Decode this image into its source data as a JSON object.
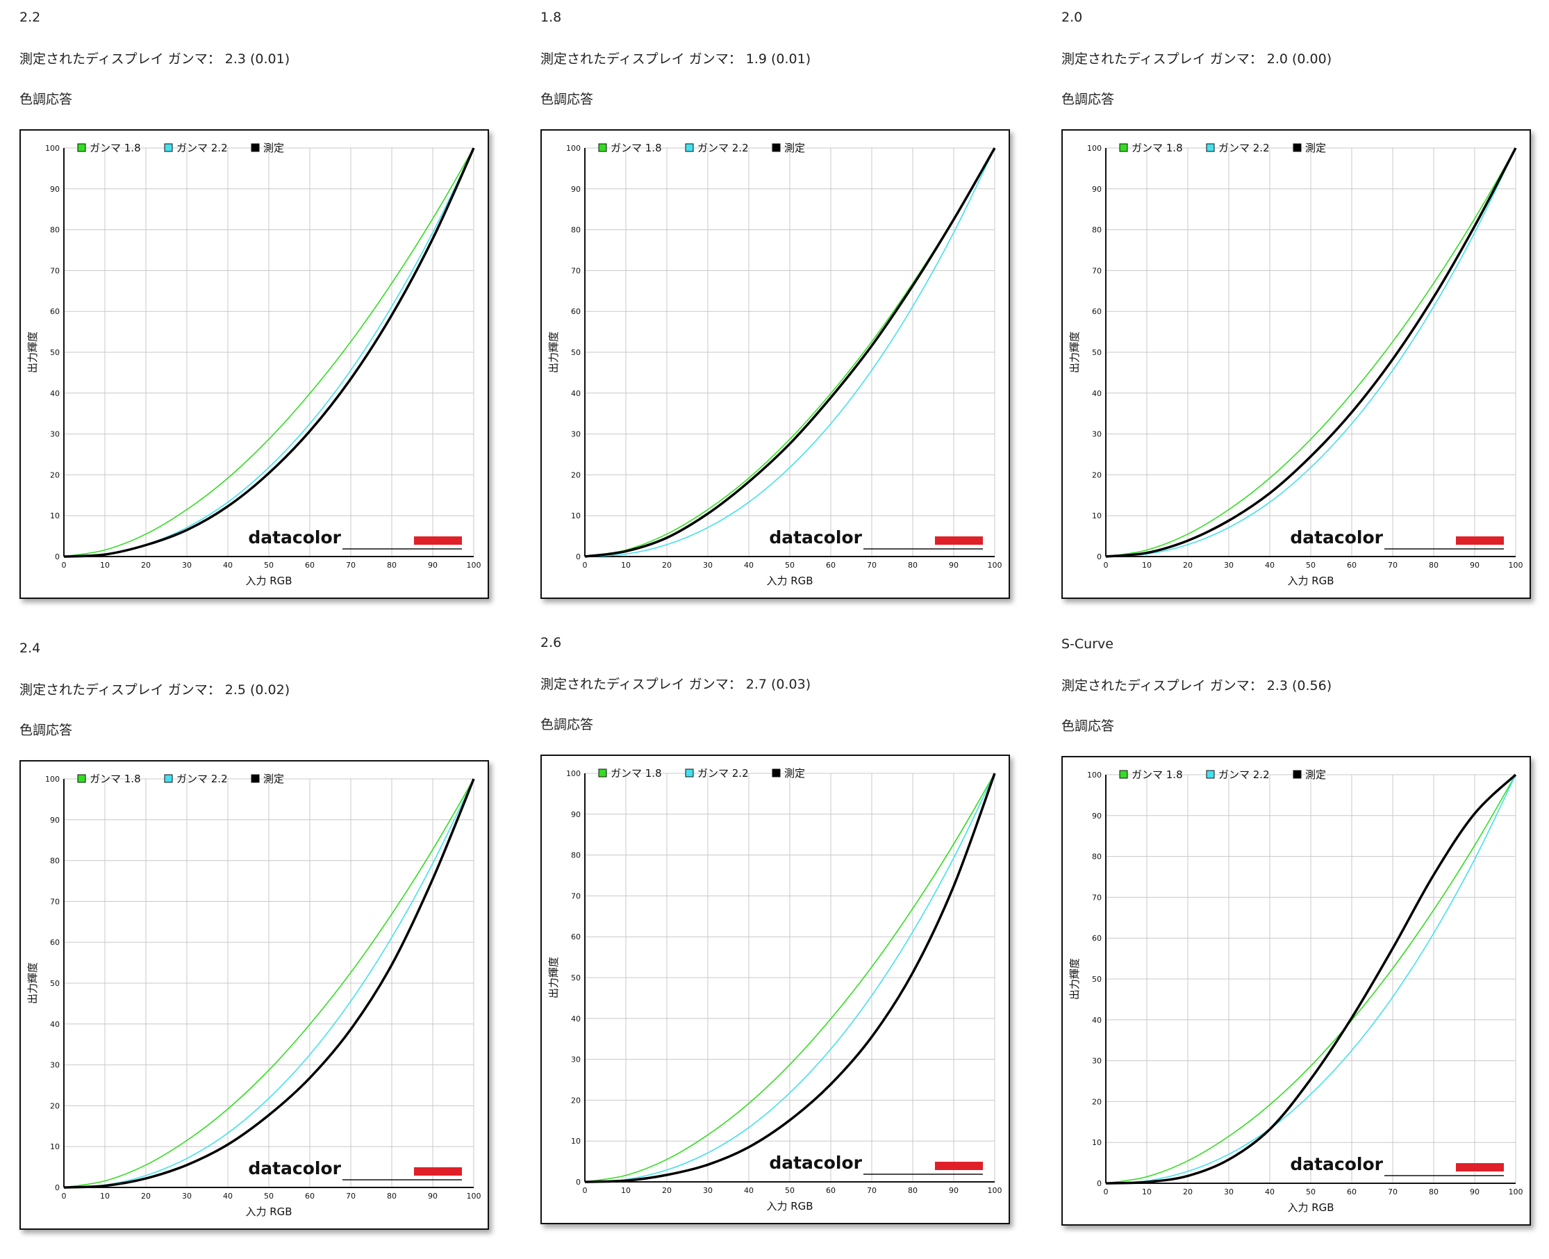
{
  "colors": {
    "green": "#33dd22",
    "cyan": "#44e0ee",
    "black": "#000000",
    "grid": "#c8c8c8",
    "brand_red": "#e02028"
  },
  "chart_data": [
    {
      "type": "line",
      "title": "2.2",
      "gamma_text": "測定されたディスプレイ ガンマ：  2.3 (0.01)",
      "section": "色調応答",
      "xlabel": "入力 RGB",
      "ylabel": "出力輝度",
      "xlim": [
        0,
        100
      ],
      "ylim": [
        0,
        100
      ],
      "grid": true,
      "legend": "top-left",
      "logo": "datacolor",
      "ticks": [
        "0",
        "10",
        "20",
        "30",
        "40",
        "50",
        "60",
        "70",
        "80",
        "90",
        "100"
      ],
      "series": [
        {
          "name": "ガンマ 1.8",
          "color": "green",
          "x": [
            0,
            10,
            20,
            30,
            40,
            50,
            60,
            70,
            80,
            90,
            100
          ],
          "y": [
            0,
            1.6,
            5.5,
            11.5,
            19.2,
            28.7,
            39.9,
            52.6,
            66.9,
            82.7,
            100
          ]
        },
        {
          "name": "ガンマ 2.2",
          "color": "cyan",
          "x": [
            0,
            10,
            20,
            30,
            40,
            50,
            60,
            70,
            80,
            90,
            100
          ],
          "y": [
            0,
            0.6,
            2.9,
            7.1,
            13.3,
            21.8,
            32.5,
            45.6,
            61.2,
            79.3,
            100
          ]
        },
        {
          "name": "測定",
          "color": "black",
          "x": [
            0,
            10,
            20,
            30,
            40,
            50,
            60,
            70,
            80,
            90,
            100
          ],
          "y": [
            0,
            0.5,
            2.8,
            6.5,
            12.3,
            20.4,
            30.7,
            43.5,
            59.1,
            77.8,
            100
          ]
        }
      ]
    },
    {
      "type": "line",
      "title": "1.8",
      "gamma_text": "測定されたディスプレイ ガンマ：  1.9 (0.01)",
      "section": "色調応答",
      "xlabel": "入力 RGB",
      "ylabel": "出力輝度",
      "xlim": [
        0,
        100
      ],
      "ylim": [
        0,
        100
      ],
      "grid": true,
      "legend": "top-left",
      "logo": "datacolor",
      "ticks": [
        "0",
        "10",
        "20",
        "30",
        "40",
        "50",
        "60",
        "70",
        "80",
        "90",
        "100"
      ],
      "series": [
        {
          "name": "ガンマ 1.8",
          "color": "green",
          "x": [
            0,
            10,
            20,
            30,
            40,
            50,
            60,
            70,
            80,
            90,
            100
          ],
          "y": [
            0,
            1.6,
            5.5,
            11.5,
            19.2,
            28.7,
            39.9,
            52.6,
            66.9,
            82.7,
            100
          ]
        },
        {
          "name": "ガンマ 2.2",
          "color": "cyan",
          "x": [
            0,
            10,
            20,
            30,
            40,
            50,
            60,
            70,
            80,
            90,
            100
          ],
          "y": [
            0,
            0.6,
            2.9,
            7.1,
            13.3,
            21.8,
            32.5,
            45.6,
            61.2,
            79.3,
            100
          ]
        },
        {
          "name": "測定",
          "color": "black",
          "x": [
            0,
            10,
            20,
            30,
            40,
            50,
            60,
            70,
            80,
            90,
            100
          ],
          "y": [
            0,
            1.3,
            4.6,
            10.5,
            18.3,
            27.6,
            38.9,
            51.6,
            66.3,
            82.5,
            100
          ]
        }
      ]
    },
    {
      "type": "line",
      "title": "2.0",
      "gamma_text": "測定されたディスプレイ ガンマ：  2.0 (0.00)",
      "section": "色調応答",
      "xlabel": "入力 RGB",
      "ylabel": "出力輝度",
      "xlim": [
        0,
        100
      ],
      "ylim": [
        0,
        100
      ],
      "grid": true,
      "legend": "top-left",
      "logo": "datacolor",
      "ticks": [
        "0",
        "10",
        "20",
        "30",
        "40",
        "50",
        "60",
        "70",
        "80",
        "90",
        "100"
      ],
      "series": [
        {
          "name": "ガンマ 1.8",
          "color": "green",
          "x": [
            0,
            10,
            20,
            30,
            40,
            50,
            60,
            70,
            80,
            90,
            100
          ],
          "y": [
            0,
            1.6,
            5.5,
            11.5,
            19.2,
            28.7,
            39.9,
            52.6,
            66.9,
            82.7,
            100
          ]
        },
        {
          "name": "ガンマ 2.2",
          "color": "cyan",
          "x": [
            0,
            10,
            20,
            30,
            40,
            50,
            60,
            70,
            80,
            90,
            100
          ],
          "y": [
            0,
            0.6,
            2.9,
            7.1,
            13.3,
            21.8,
            32.5,
            45.6,
            61.2,
            79.3,
            100
          ]
        },
        {
          "name": "測定",
          "color": "black",
          "x": [
            0,
            10,
            20,
            30,
            40,
            50,
            60,
            70,
            80,
            90,
            100
          ],
          "y": [
            0,
            0.9,
            3.9,
            8.8,
            15.5,
            24.5,
            35.3,
            48.3,
            63.5,
            80.9,
            100
          ]
        }
      ]
    },
    {
      "type": "line",
      "title": "2.4",
      "gamma_text": "測定されたディスプレイ ガンマ：  2.5 (0.02)",
      "section": "色調応答",
      "xlabel": "入力 RGB",
      "ylabel": "出力輝度",
      "xlim": [
        0,
        100
      ],
      "ylim": [
        0,
        100
      ],
      "grid": true,
      "legend": "top-left",
      "logo": "datacolor",
      "ticks": [
        "0",
        "10",
        "20",
        "30",
        "40",
        "50",
        "60",
        "70",
        "80",
        "90",
        "100"
      ],
      "series": [
        {
          "name": "ガンマ 1.8",
          "color": "green",
          "x": [
            0,
            10,
            20,
            30,
            40,
            50,
            60,
            70,
            80,
            90,
            100
          ],
          "y": [
            0,
            1.6,
            5.5,
            11.5,
            19.2,
            28.7,
            39.9,
            52.6,
            66.9,
            82.7,
            100
          ]
        },
        {
          "name": "ガンマ 2.2",
          "color": "cyan",
          "x": [
            0,
            10,
            20,
            30,
            40,
            50,
            60,
            70,
            80,
            90,
            100
          ],
          "y": [
            0,
            0.6,
            2.9,
            7.1,
            13.3,
            21.8,
            32.5,
            45.6,
            61.2,
            79.3,
            100
          ]
        },
        {
          "name": "測定",
          "color": "black",
          "x": [
            0,
            10,
            20,
            30,
            40,
            50,
            60,
            70,
            80,
            90,
            100
          ],
          "y": [
            0,
            0.4,
            2.2,
            5.5,
            10.5,
            17.7,
            26.8,
            38.7,
            54.5,
            75.5,
            100
          ]
        }
      ]
    },
    {
      "type": "line",
      "title": "2.6",
      "gamma_text": "測定されたディスプレイ ガンマ：  2.7 (0.03)",
      "section": "色調応答",
      "xlabel": "入力 RGB",
      "ylabel": "出力輝度",
      "xlim": [
        0,
        100
      ],
      "ylim": [
        0,
        100
      ],
      "grid": true,
      "legend": "top-left",
      "logo": "datacolor",
      "ticks": [
        "0",
        "10",
        "20",
        "30",
        "40",
        "50",
        "60",
        "70",
        "80",
        "90",
        "100"
      ],
      "series": [
        {
          "name": "ガンマ 1.8",
          "color": "green",
          "x": [
            0,
            10,
            20,
            30,
            40,
            50,
            60,
            70,
            80,
            90,
            100
          ],
          "y": [
            0,
            1.6,
            5.5,
            11.5,
            19.2,
            28.7,
            39.9,
            52.6,
            66.9,
            82.7,
            100
          ]
        },
        {
          "name": "ガンマ 2.2",
          "color": "cyan",
          "x": [
            0,
            10,
            20,
            30,
            40,
            50,
            60,
            70,
            80,
            90,
            100
          ],
          "y": [
            0,
            0.6,
            2.9,
            7.1,
            13.3,
            21.8,
            32.5,
            45.6,
            61.2,
            79.3,
            100
          ]
        },
        {
          "name": "測定",
          "color": "black",
          "x": [
            0,
            10,
            20,
            30,
            40,
            50,
            60,
            70,
            80,
            90,
            100
          ],
          "y": [
            0,
            0.3,
            1.7,
            4.2,
            8.5,
            15.1,
            23.9,
            35.5,
            51.2,
            72.4,
            100
          ]
        }
      ]
    },
    {
      "type": "line",
      "title": "S-Curve",
      "gamma_text": "測定されたディスプレイ ガンマ：  2.3 (0.56)",
      "section": "色調応答",
      "xlabel": "入力 RGB",
      "ylabel": "出力輝度",
      "xlim": [
        0,
        100
      ],
      "ylim": [
        0,
        100
      ],
      "grid": true,
      "legend": "top-left",
      "logo": "datacolor",
      "ticks": [
        "0",
        "10",
        "20",
        "30",
        "40",
        "50",
        "60",
        "70",
        "80",
        "90",
        "100"
      ],
      "series": [
        {
          "name": "ガンマ 1.8",
          "color": "green",
          "x": [
            0,
            10,
            20,
            30,
            40,
            50,
            60,
            70,
            80,
            90,
            100
          ],
          "y": [
            0,
            1.6,
            5.5,
            11.5,
            19.2,
            28.7,
            39.9,
            52.6,
            66.9,
            82.7,
            100
          ]
        },
        {
          "name": "ガンマ 2.2",
          "color": "cyan",
          "x": [
            0,
            10,
            20,
            30,
            40,
            50,
            60,
            70,
            80,
            90,
            100
          ],
          "y": [
            0,
            0.6,
            2.9,
            7.1,
            13.3,
            21.8,
            32.5,
            45.6,
            61.2,
            79.3,
            100
          ]
        },
        {
          "name": "測定",
          "color": "black",
          "x": [
            0,
            10,
            20,
            30,
            40,
            50,
            60,
            70,
            80,
            90,
            100
          ],
          "y": [
            0,
            0.3,
            1.8,
            5.8,
            13.2,
            25.5,
            40.5,
            57.5,
            75.5,
            90.5,
            100
          ]
        }
      ]
    }
  ]
}
